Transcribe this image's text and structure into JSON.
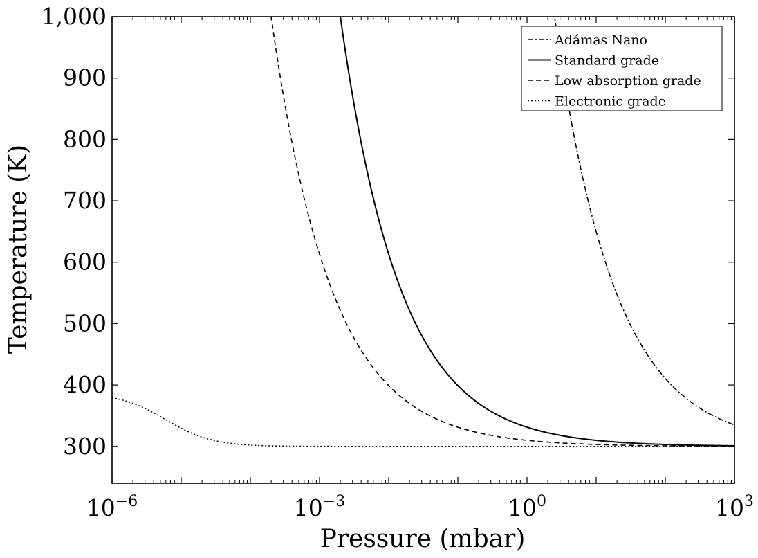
{
  "chart_data": {
    "type": "line",
    "title": "",
    "xlabel": "Pressure (mbar)",
    "ylabel": "Temperature (K)",
    "x_scale": "log",
    "xlim": [
      1e-06,
      1000
    ],
    "ylim": [
      240,
      1000
    ],
    "x_ticks": [
      {
        "base": "10",
        "exp": "−6",
        "value": 1e-06
      },
      {
        "base": "10",
        "exp": "−3",
        "value": 0.001
      },
      {
        "base": "10",
        "exp": "0",
        "value": 1
      },
      {
        "base": "10",
        "exp": "3",
        "value": 1000
      }
    ],
    "y_ticks": [
      {
        "label": "300",
        "value": 300
      },
      {
        "label": "400",
        "value": 400
      },
      {
        "label": "500",
        "value": 500
      },
      {
        "label": "600",
        "value": 600
      },
      {
        "label": "700",
        "value": 700
      },
      {
        "label": "800",
        "value": 800
      },
      {
        "label": "900",
        "value": 900
      },
      {
        "label": "1,000",
        "value": 1000
      }
    ],
    "legend_position": "top-right",
    "series": [
      {
        "name": "Adámas Nano",
        "style": "dashdot",
        "ambient": 300,
        "p_ref": 2.5,
        "t_ref": 1000
      },
      {
        "name": "Standard grade",
        "style": "solid",
        "ambient": 300,
        "p_ref": 0.002,
        "t_ref": 1000
      },
      {
        "name": "Low absorption grade",
        "style": "dashed",
        "ambient": 300,
        "p_ref": 0.0002,
        "t_ref": 1000
      },
      {
        "name": "Electronic grade",
        "style": "dotted",
        "ambient": 300,
        "low_pressure_temp": 387,
        "p_half": 6e-06
      }
    ]
  }
}
